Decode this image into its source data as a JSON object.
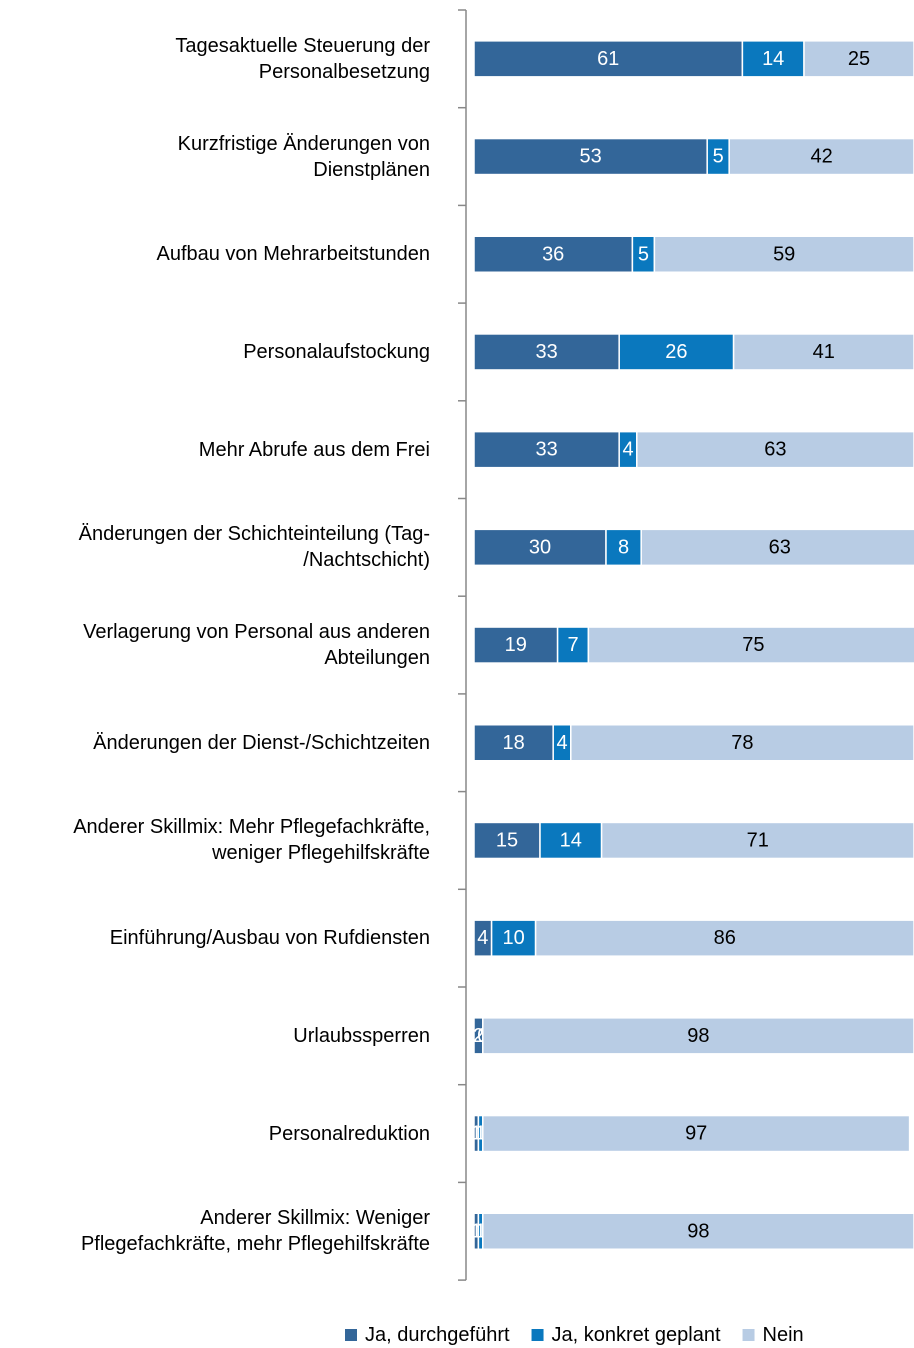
{
  "chart_data": {
    "type": "stacked_barh",
    "categories": [
      "Tagesaktuelle Steuerung der\nPersonalbesetzung",
      "Kurzfristige Änderungen von\nDienstplänen",
      "Aufbau von Mehrarbeitstunden",
      "Personalaufstockung",
      "Mehr Abrufe aus dem Frei",
      "Änderungen der Schichteinteilung (Tag-\n/Nachtschicht)",
      "Verlagerung von Personal aus anderen\nAbteilungen",
      "Änderungen der Dienst-/Schichtzeiten",
      "Anderer Skillmix: Mehr Pflegefachkräfte,\nweniger Pflegehilfskräfte",
      "Einführung/Ausbau von Rufdiensten",
      "Urlaubssperren",
      "Personalreduktion",
      "Anderer Skillmix: Weniger\nPflegefachkräfte, mehr Pflegehilfskräfte"
    ],
    "series": [
      {
        "name": "Ja, durchgeführt",
        "color": "#336699",
        "label_color": "#ffffff",
        "values": [
          61,
          53,
          36,
          33,
          33,
          30,
          19,
          18,
          15,
          4,
          2,
          1,
          1
        ]
      },
      {
        "name": "Ja, konkret geplant",
        "color": "#0a78be",
        "label_color": "#ffffff",
        "values": [
          14,
          5,
          5,
          26,
          4,
          8,
          7,
          4,
          14,
          10,
          0,
          1,
          1
        ]
      },
      {
        "name": "Nein",
        "color": "#b8cce4",
        "label_color": "#000000",
        "values": [
          25,
          42,
          59,
          41,
          63,
          63,
          75,
          78,
          71,
          86,
          98,
          97,
          98
        ]
      }
    ],
    "xlim": [
      0,
      100
    ],
    "legend": "bottom"
  }
}
